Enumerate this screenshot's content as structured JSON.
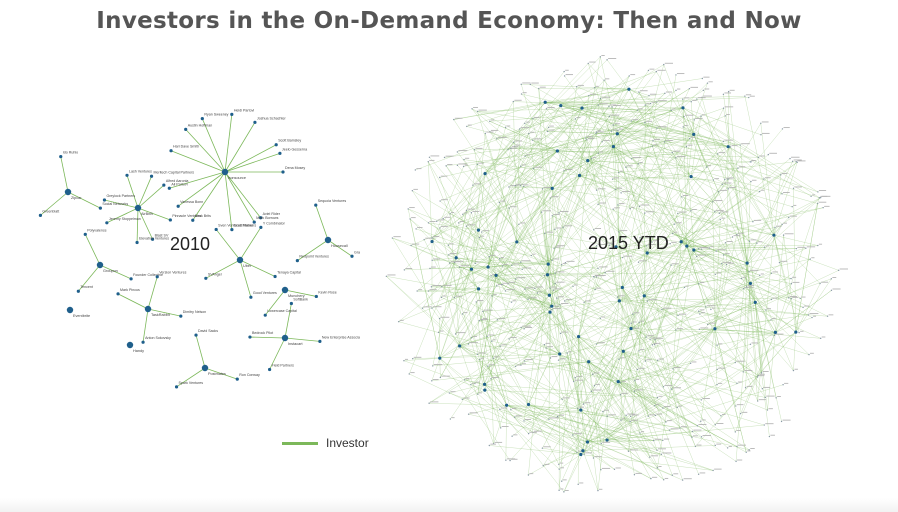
{
  "title": "Investors in the On-Demand Economy: Then and Now",
  "panels": {
    "left": {
      "label": "2010"
    },
    "right": {
      "label": "2015 YTD"
    }
  },
  "legend": {
    "label": "Investor",
    "color": "#7cb85a"
  },
  "colors": {
    "edge": "#7cb85a",
    "hub": "#1f5f8b",
    "node_label": "#444444"
  },
  "network_2010": {
    "hubs": [
      {
        "id": "h1",
        "label": "Ironsource"
      },
      {
        "id": "h2",
        "label": "AirBnB"
      },
      {
        "id": "h3",
        "label": "Zipcar"
      },
      {
        "id": "h4",
        "label": "Housecall"
      },
      {
        "id": "h5",
        "label": "Groupon"
      },
      {
        "id": "h6",
        "label": "TaskRabbit"
      },
      {
        "id": "h7",
        "label": "Uber"
      },
      {
        "id": "h8",
        "label": "Instacart"
      },
      {
        "id": "h9",
        "label": "Postmates"
      },
      {
        "id": "h10",
        "label": "Munchery"
      },
      {
        "id": "h11",
        "label": "Eventbrite"
      },
      {
        "id": "h12",
        "label": "Handy"
      }
    ],
    "investors": [
      "Dena Mosey",
      "Aviel Rider",
      "Mark Borrows",
      "Scott Maxer",
      "Mark Brits",
      "Vanessa Bonn",
      "Ali Partovi",
      "Hari Dave Smith",
      "Austin Hoffman",
      "Ryan Sweeney",
      "Heidi Partovi",
      "Joshua Schachter",
      "Scott Bamsley",
      "Jeelo Gesserna",
      "Pinnacle Ventures",
      "Blast SV",
      "Elevation Ventures",
      "Jeremy Stoppelman",
      "Greylock Partners",
      "Lash Ventures",
      "Meritech Capital Partners",
      "Alfred Aaronia",
      "Social Networks",
      "Greenblatt",
      "Ido Ruhlo",
      "Graybelt",
      "Redpoint Ventures",
      "Sequoia Ventures",
      "Founder Collective",
      "Tencent",
      "Polyvalence",
      "Dimitry Nelson",
      "Anton Sokovsky",
      "Mark Pincus",
      "Version Ventures",
      "Tenaya Capital",
      "Good Ventures",
      "SVAngel",
      "Sven Ventures Partners",
      "Y Combinator",
      "New Enterprise Associates",
      "Field Partners",
      "Bedrock Pilot",
      "SoftBank",
      "Ron Conway",
      "Spark Ventures",
      "David Sacks",
      "Kevin Rose",
      "Lowercase Capital"
    ]
  },
  "network_2015": {
    "hub_count": 60,
    "node_count": 520
  }
}
